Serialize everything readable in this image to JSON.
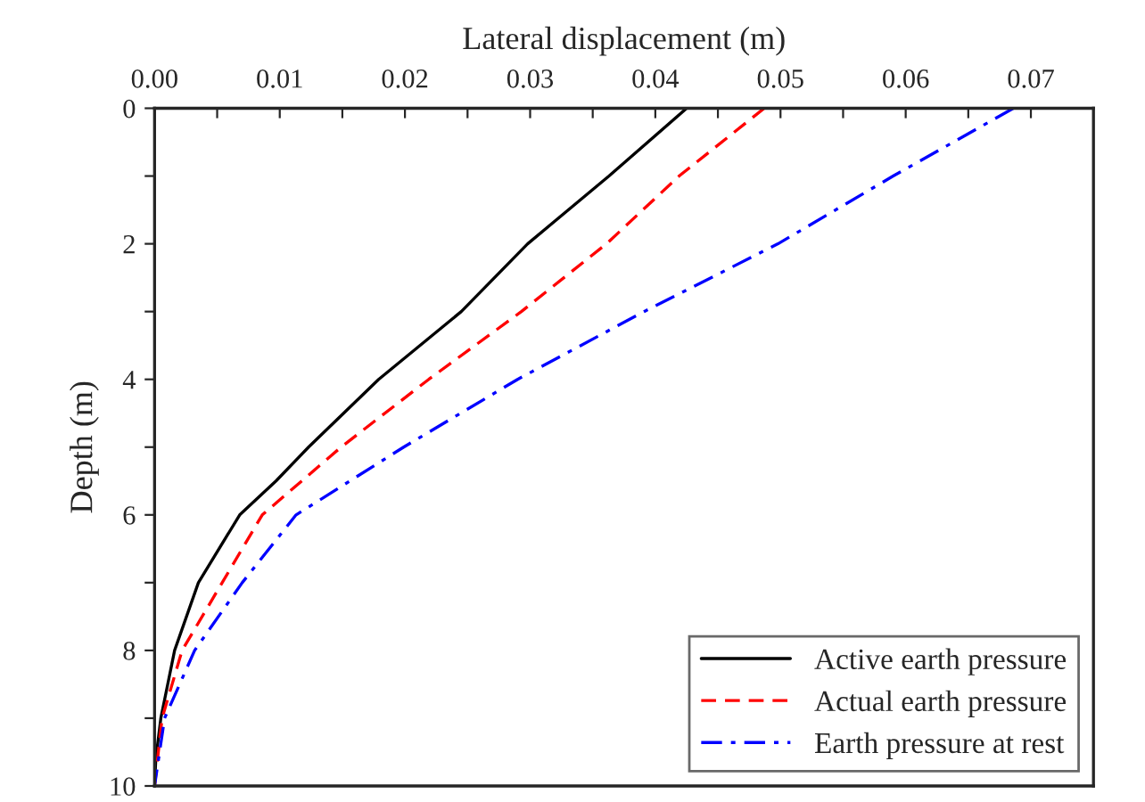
{
  "chart_data": {
    "type": "line",
    "xlabel": "Lateral displacement (m)",
    "ylabel": "Depth (m)",
    "xlim": [
      0,
      0.075
    ],
    "ylim": [
      10,
      0
    ],
    "xticks": [
      {
        "value": 0,
        "label": "0.00"
      },
      {
        "value": 0.005,
        "label": null
      },
      {
        "value": 0.01,
        "label": "0.01"
      },
      {
        "value": 0.015,
        "label": null
      },
      {
        "value": 0.02,
        "label": "0.02"
      },
      {
        "value": 0.025,
        "label": null
      },
      {
        "value": 0.03,
        "label": "0.03"
      },
      {
        "value": 0.035,
        "label": null
      },
      {
        "value": 0.04,
        "label": "0.04"
      },
      {
        "value": 0.045,
        "label": null
      },
      {
        "value": 0.05,
        "label": "0.05"
      },
      {
        "value": 0.055,
        "label": null
      },
      {
        "value": 0.06,
        "label": "0.06"
      },
      {
        "value": 0.065,
        "label": null
      },
      {
        "value": 0.07,
        "label": "0.07"
      }
    ],
    "yticks": [
      0,
      {
        "value": 1,
        "label": null
      },
      2,
      {
        "value": 3,
        "label": null
      },
      4,
      {
        "value": 5,
        "label": null
      },
      6,
      {
        "value": 7,
        "label": null
      },
      8,
      {
        "value": 9,
        "label": null
      },
      10
    ],
    "grid": false,
    "legend": "bottom right",
    "marker": "none",
    "series": [
      {
        "name": "Active earth pressure",
        "color": "#000000",
        "line_style": "solid",
        "x": [
          0.0425,
          0.0363,
          0.0298,
          0.0245,
          0.0179,
          0.0123,
          0.0097,
          0.0068,
          0.0035,
          0.0016,
          0.0005,
          0.0001,
          0
        ],
        "values": [
          0,
          1,
          2,
          3,
          4,
          5,
          5.5,
          6,
          7,
          8,
          9,
          9.6,
          10
        ]
      },
      {
        "name": "Actual earth pressure",
        "color": "#ff0000",
        "line_style": "dashed",
        "x": [
          0.0487,
          0.0419,
          0.0361,
          0.0293,
          0.0219,
          0.0149,
          0.0086,
          0.0054,
          0.0022,
          0.0006,
          0
        ],
        "values": [
          0,
          1,
          2,
          3,
          4,
          5,
          6,
          7,
          8,
          9,
          10
        ]
      },
      {
        "name": "Earth pressure at rest",
        "color": "#0000ff",
        "line_style": "dashdot",
        "x": [
          0.0686,
          0.059,
          0.0498,
          0.0391,
          0.029,
          0.0199,
          0.0113,
          0.007,
          0.0032,
          0.0008,
          0
        ],
        "values": [
          0,
          1,
          2,
          3,
          4,
          5,
          6,
          7,
          8,
          9,
          10
        ]
      }
    ]
  }
}
